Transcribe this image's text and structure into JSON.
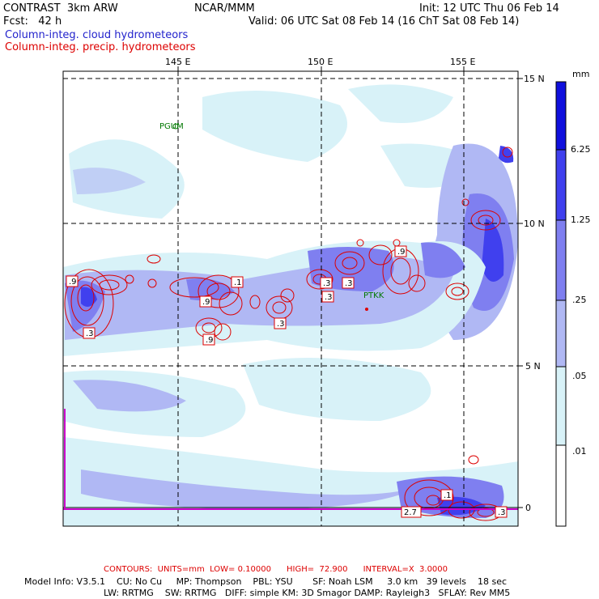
{
  "header": {
    "model": "CONTRAST  3km ARW",
    "org": "NCAR/MMM",
    "init": "Init: 12 UTC Thu 06 Feb 14",
    "fcst": "Fcst:   42 h",
    "valid": "Valid: 06 UTC Sat 08 Feb 14 (16 ChT Sat 08 Feb 14)"
  },
  "legend": {
    "cloud": "Column-integ. cloud hydrometeors",
    "precip": "Column-integ. precip. hydrometeors"
  },
  "axes": {
    "lon_labels": [
      "145 E",
      "150 E",
      "155 E"
    ],
    "lat_labels": [
      "15 N",
      "10 N",
      "5 N",
      "0"
    ]
  },
  "stations": [
    "PGUM",
    "PTKK"
  ],
  "contour_labels": [
    ".9",
    ".3",
    ".9",
    ".9",
    ".1",
    ".3",
    ".3",
    ".3",
    ".3",
    ".9",
    ".1",
    "2.7",
    ".3"
  ],
  "colorbar": {
    "unit": "mm",
    "levels": [
      "6.25",
      "1.25",
      ".25",
      ".05",
      ".01"
    ],
    "colors": [
      "#1010dd",
      "#4040ee",
      "#7f7ff0",
      "#b0b8f4",
      "#d8f2f8",
      "#ffffff"
    ]
  },
  "footer": {
    "contours": "CONTOURS:  UNITS=mm  LOW= 0.10000      HIGH=  72.900      INTERVAL=X  3.0000",
    "line1": "Model Info: V3.5.1    CU: No Cu     MP: Thompson    PBL: YSU       SF: Noah LSM     3.0 km   39 levels    18 sec",
    "line2": "LW: RRTMG    SW: RRTMG   DIFF: simple KM: 3D Smagor DAMP: Rayleigh3   SFLAY: Rev MM5"
  }
}
